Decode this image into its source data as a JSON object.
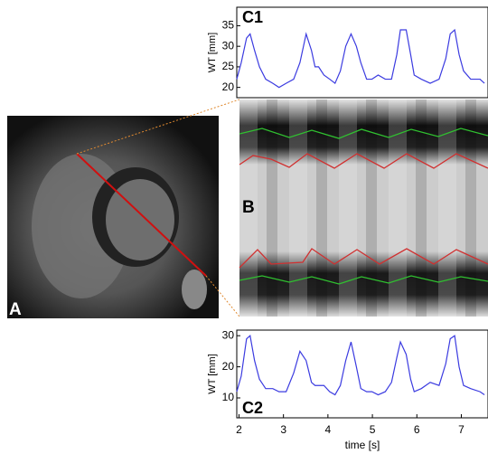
{
  "panels": [
    "A",
    "B"
  ],
  "chart_data": [
    {
      "type": "line",
      "title": "C1",
      "ylabel": "WT [mm]",
      "color": "#3b3be0",
      "x": [
        1.95,
        2.05,
        2.17,
        2.25,
        2.35,
        2.46,
        2.6,
        2.76,
        2.9,
        3.06,
        3.23,
        3.37,
        3.51,
        3.63,
        3.71,
        3.79,
        3.91,
        4.04,
        4.16,
        4.28,
        4.4,
        4.52,
        4.64,
        4.74,
        4.87,
        4.99,
        5.13,
        5.29,
        5.43,
        5.55,
        5.63,
        5.76,
        5.86,
        5.94,
        6.1,
        6.3,
        6.5,
        6.65,
        6.75,
        6.85,
        6.95,
        7.05,
        7.21,
        7.42,
        7.52
      ],
      "values": [
        22,
        26,
        32,
        33,
        29,
        25,
        22,
        21,
        20,
        21,
        22,
        26,
        33,
        29,
        25,
        25,
        23,
        22,
        21,
        24,
        30,
        33,
        30,
        26,
        22,
        22,
        23,
        22,
        22,
        28,
        34,
        34,
        28,
        23,
        22,
        21,
        22,
        27,
        33,
        34,
        28,
        24,
        22,
        22,
        21
      ],
      "xlim": [
        1.95,
        7.6
      ],
      "ylim": [
        17.5,
        39.5
      ],
      "yticks": [
        20,
        25,
        30,
        35
      ]
    },
    {
      "type": "line",
      "title": "C2",
      "ylabel": "WT [mm]",
      "xlabel": "time [s]",
      "color": "#3b3be0",
      "x": [
        1.95,
        2.05,
        2.17,
        2.25,
        2.35,
        2.46,
        2.6,
        2.76,
        2.9,
        3.06,
        3.23,
        3.37,
        3.51,
        3.63,
        3.71,
        3.79,
        3.91,
        4.04,
        4.16,
        4.28,
        4.4,
        4.52,
        4.64,
        4.74,
        4.87,
        4.99,
        5.13,
        5.29,
        5.43,
        5.55,
        5.63,
        5.76,
        5.86,
        5.94,
        6.1,
        6.3,
        6.5,
        6.65,
        6.75,
        6.85,
        6.95,
        7.05,
        7.21,
        7.42,
        7.52
      ],
      "values": [
        12,
        17,
        29,
        30,
        22,
        16,
        13,
        13,
        12,
        12,
        18,
        25,
        22,
        15,
        14,
        14,
        14,
        12,
        11,
        14,
        22,
        28,
        20,
        13,
        12,
        12,
        11,
        12,
        15,
        23,
        28,
        24,
        16,
        12,
        13,
        15,
        14,
        21,
        29,
        30,
        20,
        14,
        13,
        12,
        11
      ],
      "xlim": [
        1.95,
        7.6
      ],
      "ylim": [
        3.6,
        31.8
      ],
      "yticks": [
        10,
        20,
        30
      ],
      "xticks": [
        2,
        3,
        4,
        5,
        6,
        7
      ]
    }
  ]
}
